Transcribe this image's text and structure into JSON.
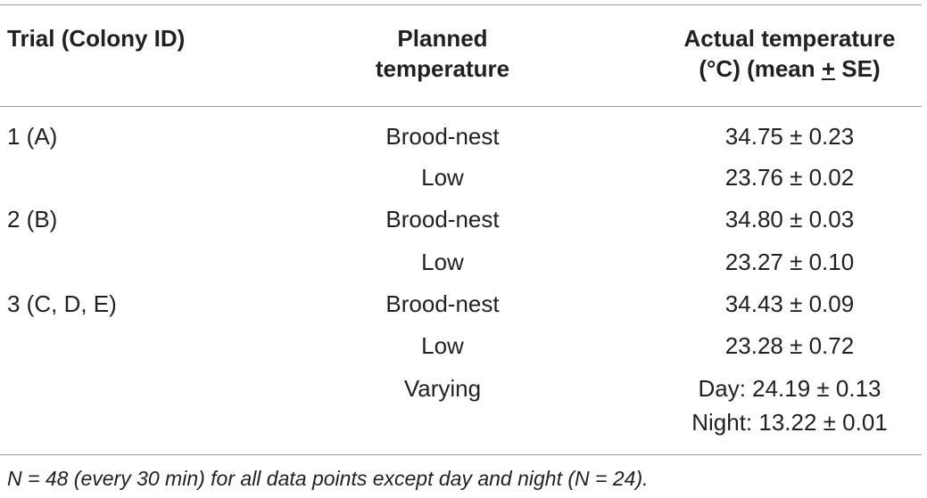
{
  "table": {
    "headers": {
      "trial": "Trial (Colony ID)",
      "planned_line1": "Planned",
      "planned_line2": "temperature",
      "actual_line1": "Actual temperature",
      "actual_line2_prefix": "(°C) (mean ",
      "actual_line2_pm": "+",
      "actual_line2_suffix": " SE)"
    },
    "rows": [
      {
        "trial": "1 (A)",
        "planned": "Brood-nest",
        "actual": "34.75 ± 0.23"
      },
      {
        "trial": "",
        "planned": "Low",
        "actual": "23.76 ± 0.02"
      },
      {
        "trial": "2 (B)",
        "planned": "Brood-nest",
        "actual": "34.80 ± 0.03"
      },
      {
        "trial": "",
        "planned": "Low",
        "actual": "23.27 ± 0.10"
      },
      {
        "trial": "3 (C, D, E)",
        "planned": "Brood-nest",
        "actual": "34.43 ± 0.09"
      },
      {
        "trial": "",
        "planned": "Low",
        "actual": "23.28 ± 0.72"
      },
      {
        "trial": "",
        "planned": "Varying",
        "actual": "Day: 24.19 ± 0.13",
        "actual_line2": "Night: 13.22 ± 0.01"
      }
    ],
    "footnote": "N = 48 (every 30 min) for all data points except day and night (N = 24)."
  }
}
